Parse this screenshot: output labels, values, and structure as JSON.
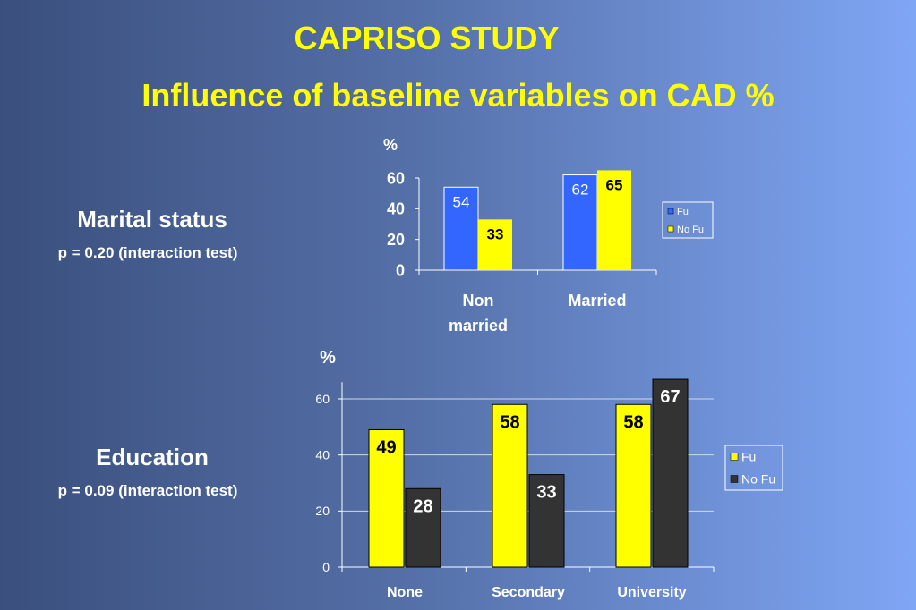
{
  "title": "CAPRISO STUDY",
  "subtitle": "Influence of baseline variables on CAD %",
  "sections": [
    {
      "heading": "Marital status",
      "note": "p = 0.20 (interaction test)"
    },
    {
      "heading": "Education",
      "note": "p = 0.09 (interaction test)"
    }
  ],
  "colors": {
    "title": "#ffff00",
    "fu_blue": "#3366ff",
    "no_fu_yellow": "#ffff00",
    "fu_yellow": "#ffff00",
    "no_fu_dark": "#333333"
  },
  "chart_data": [
    {
      "type": "bar",
      "ylabel": "%",
      "ylim": [
        0,
        60
      ],
      "yticks": [
        0,
        20,
        40,
        60
      ],
      "categories": [
        "Non married",
        "Married"
      ],
      "series": [
        {
          "name": "Fu",
          "values": [
            54,
            62
          ],
          "color": "#3366ff",
          "label_color": "#ffffff"
        },
        {
          "name": "No Fu",
          "values": [
            33,
            65
          ],
          "color": "#ffff00",
          "label_color": "#000000"
        }
      ],
      "legend": "right"
    },
    {
      "type": "bar",
      "ylabel": "%",
      "ylim": [
        0,
        70
      ],
      "yticks": [
        0,
        20,
        40,
        60
      ],
      "grid": true,
      "categories": [
        "None",
        "Secondary",
        "University"
      ],
      "series": [
        {
          "name": "Fu",
          "values": [
            49,
            58,
            58
          ],
          "color": "#ffff00",
          "label_color": "#000000"
        },
        {
          "name": "No Fu",
          "values": [
            28,
            33,
            67
          ],
          "color": "#333333",
          "label_color": "#ffffff"
        }
      ],
      "legend": "right"
    }
  ]
}
